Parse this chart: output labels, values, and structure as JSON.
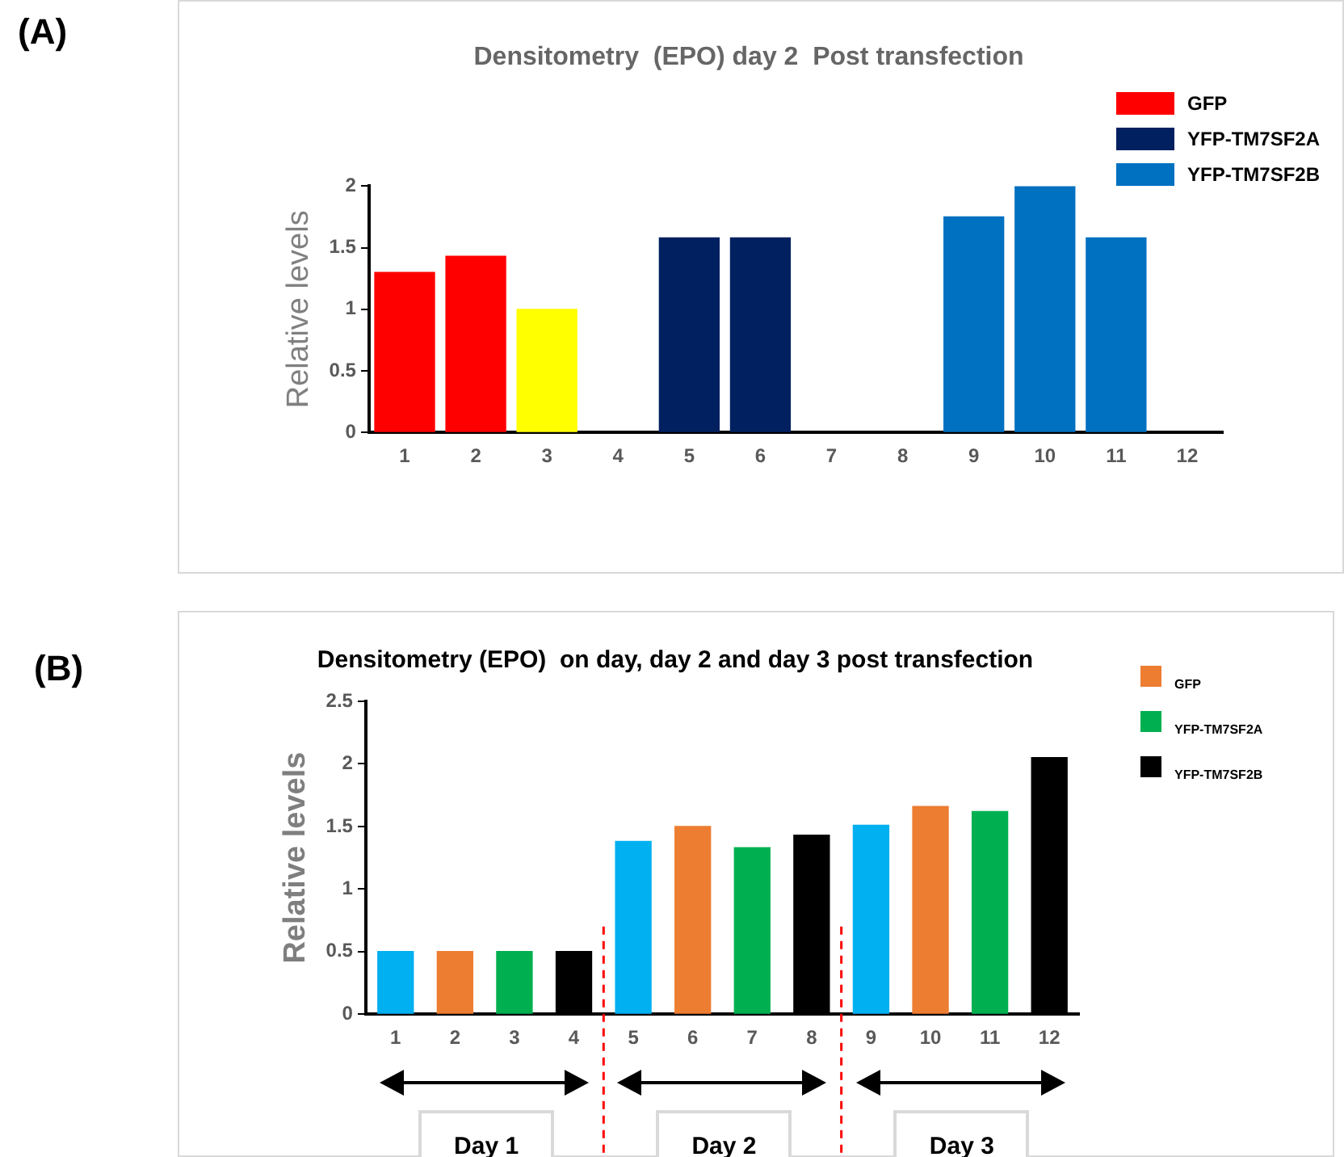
{
  "chart_data": [
    {
      "type": "bar",
      "title": "Densitometry  (EPO) day 2  Post transfection",
      "ylabel": "Relative levels",
      "annotations": [
        "(A)"
      ],
      "xlim": [
        0.5,
        12.5
      ],
      "xticks": [
        1,
        2,
        3,
        4,
        5,
        6,
        7,
        8,
        9,
        10,
        11,
        12
      ],
      "ylim": [
        0,
        2
      ],
      "yticks": [
        0,
        0.5,
        1,
        1.5,
        2
      ],
      "legend": "top right",
      "series": [
        {
          "name": "GFP",
          "color": "#ff0000",
          "x": [
            1,
            2
          ],
          "values": [
            1.3,
            1.43
          ]
        },
        {
          "color": "#ffff00",
          "x": [
            3
          ],
          "values": [
            1.0
          ]
        },
        {
          "name": "YFP-TM7SF2A",
          "color": "#002060",
          "x": [
            5,
            6
          ],
          "values": [
            1.58,
            1.58
          ]
        },
        {
          "name": "YFP-TM7SF2B",
          "color": "#0070c0",
          "x": [
            9,
            10,
            11
          ],
          "values": [
            1.75,
            2.0,
            1.58
          ]
        }
      ]
    },
    {
      "type": "bar",
      "title": "Densitometry (EPO)  on day, day 2 and day 3 post transfection",
      "ylabel": "Relative levels",
      "annotations": [
        "(B)",
        "Day 1",
        "Day 2",
        "Day 3"
      ],
      "xlim": [
        0.5,
        12.5
      ],
      "xticks": [
        1,
        2,
        3,
        4,
        5,
        6,
        7,
        8,
        9,
        10,
        11,
        12
      ],
      "ylim": [
        0,
        2.5
      ],
      "yticks": [
        0,
        0.5,
        1,
        1.5,
        2,
        2.5
      ],
      "legend": "top right",
      "ref_lines": [
        {
          "axis": "x",
          "value": 4.5,
          "color": "#ff0000",
          "line_style": "dashed"
        },
        {
          "axis": "x",
          "value": 8.5,
          "color": "#ff0000",
          "line_style": "dashed"
        }
      ],
      "series": [
        {
          "color": "#00b0f0",
          "x": [
            1,
            5,
            9
          ],
          "values": [
            0.5,
            1.38,
            1.51
          ]
        },
        {
          "name": "GFP",
          "color": "#ed7d31",
          "x": [
            2,
            6,
            10
          ],
          "values": [
            0.5,
            1.5,
            1.66
          ]
        },
        {
          "name": "YFP-TM7SF2A",
          "color": "#00b050",
          "x": [
            3,
            7,
            11
          ],
          "values": [
            0.5,
            1.33,
            1.62
          ]
        },
        {
          "name": "YFP-TM7SF2B",
          "color": "#000000",
          "x": [
            4,
            8,
            12
          ],
          "values": [
            0.5,
            1.43,
            2.05
          ]
        }
      ]
    }
  ]
}
